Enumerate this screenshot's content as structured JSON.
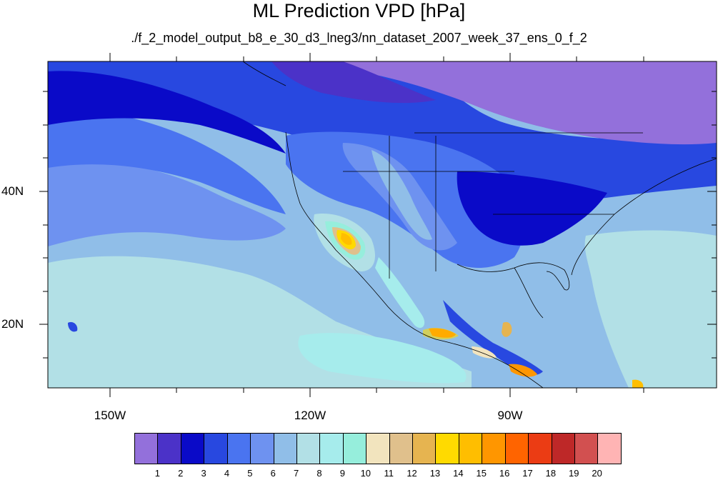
{
  "title": "ML Prediction VPD [hPa]",
  "subtitle": "./f_2_model_output_b8_e_30_d3_lneg3/nn_dataset_2007_week_37_ens_0_f_2",
  "map": {
    "lat_labels": [
      "40N",
      "20N"
    ],
    "lon_labels": [
      "150W",
      "120W",
      "90W"
    ]
  },
  "colorbar": {
    "colors": [
      "#9370db",
      "#4b32c8",
      "#0a0ac8",
      "#2848e0",
      "#4a74f0",
      "#6e92f0",
      "#90bee8",
      "#b2e0e6",
      "#a6ecec",
      "#96eedc",
      "#f2e4be",
      "#e0c08c",
      "#e6b450",
      "#ffda00",
      "#ffbe00",
      "#ff9600",
      "#ff6400",
      "#eb3c14",
      "#be2828",
      "#d25050",
      "#ffb4b4"
    ],
    "labels": [
      "1",
      "2",
      "3",
      "4",
      "5",
      "6",
      "7",
      "8",
      "9",
      "10",
      "11",
      "12",
      "13",
      "14",
      "15",
      "16",
      "17",
      "18",
      "19",
      "20"
    ]
  }
}
